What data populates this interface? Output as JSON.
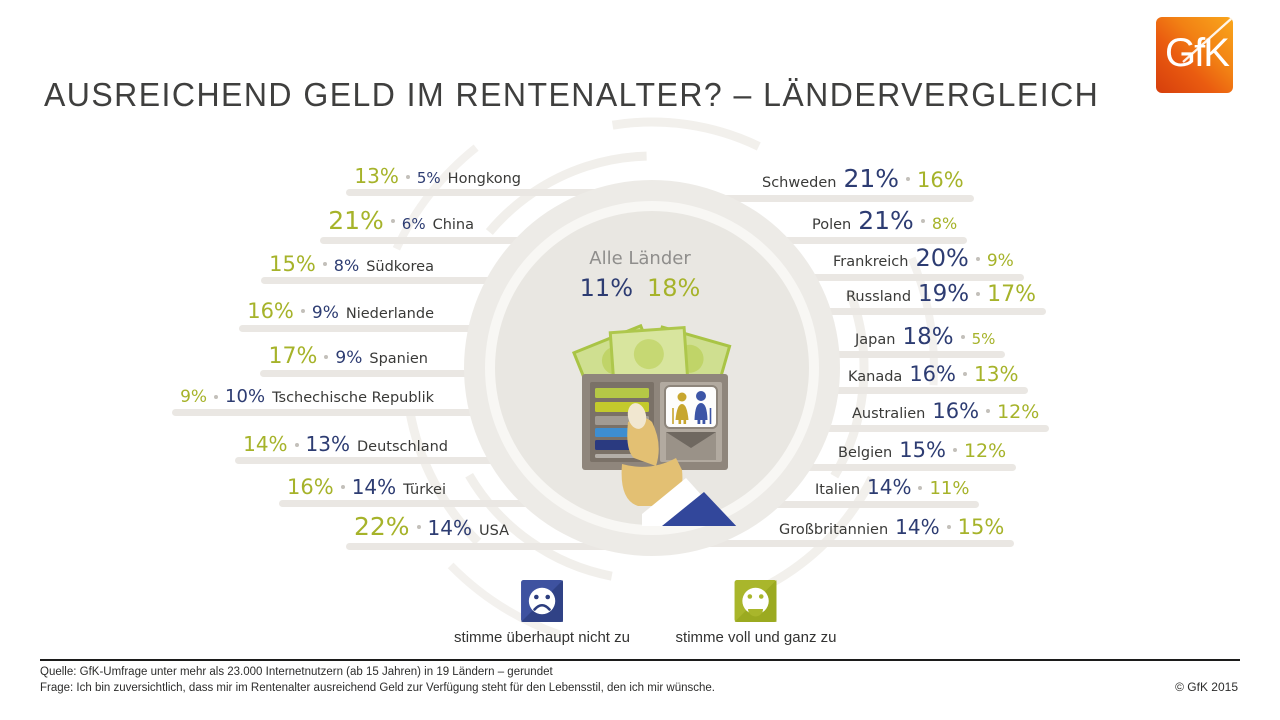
{
  "header": {
    "title": "AUSREICHEND GELD IM RENTENALTER? – LÄNDERVERGLEICH",
    "logo_text": "GfK"
  },
  "center": {
    "label": "Alle Länder",
    "disagree_label": "11%",
    "agree_label": "18%"
  },
  "left_countries": [
    {
      "name": "Hongkong",
      "agree": 13,
      "disagree": 5,
      "agree_label": "13%",
      "disagree_label": "5%"
    },
    {
      "name": "China",
      "agree": 21,
      "disagree": 6,
      "agree_label": "21%",
      "disagree_label": "6%"
    },
    {
      "name": "Südkorea",
      "agree": 15,
      "disagree": 8,
      "agree_label": "15%",
      "disagree_label": "8%"
    },
    {
      "name": "Niederlande",
      "agree": 16,
      "disagree": 9,
      "agree_label": "16%",
      "disagree_label": "9%"
    },
    {
      "name": "Spanien",
      "agree": 17,
      "disagree": 9,
      "agree_label": "17%",
      "disagree_label": "9%"
    },
    {
      "name": "Tschechische Republik",
      "agree": 9,
      "disagree": 10,
      "agree_label": "9%",
      "disagree_label": "10%"
    },
    {
      "name": "Deutschland",
      "agree": 14,
      "disagree": 13,
      "agree_label": "14%",
      "disagree_label": "13%"
    },
    {
      "name": "Türkei",
      "agree": 16,
      "disagree": 14,
      "agree_label": "16%",
      "disagree_label": "14%"
    },
    {
      "name": "USA",
      "agree": 22,
      "disagree": 14,
      "agree_label": "22%",
      "disagree_label": "14%"
    }
  ],
  "right_countries": [
    {
      "name": "Schweden",
      "disagree": 21,
      "agree": 16,
      "disagree_label": "21%",
      "agree_label": "16%"
    },
    {
      "name": "Polen",
      "disagree": 21,
      "agree": 8,
      "disagree_label": "21%",
      "agree_label": "8%"
    },
    {
      "name": "Frankreich",
      "disagree": 20,
      "agree": 9,
      "disagree_label": "20%",
      "agree_label": "9%"
    },
    {
      "name": "Russland",
      "disagree": 19,
      "agree": 17,
      "disagree_label": "19%",
      "agree_label": "17%"
    },
    {
      "name": "Japan",
      "disagree": 18,
      "agree": 5,
      "disagree_label": "18%",
      "agree_label": "5%"
    },
    {
      "name": "Kanada",
      "disagree": 16,
      "agree": 13,
      "disagree_label": "16%",
      "agree_label": "13%"
    },
    {
      "name": "Australien",
      "disagree": 16,
      "agree": 12,
      "disagree_label": "16%",
      "agree_label": "12%"
    },
    {
      "name": "Belgien",
      "disagree": 15,
      "agree": 12,
      "disagree_label": "15%",
      "agree_label": "12%"
    },
    {
      "name": "Italien",
      "disagree": 14,
      "agree": 11,
      "disagree_label": "14%",
      "agree_label": "11%"
    },
    {
      "name": "Großbritannien",
      "disagree": 14,
      "agree": 15,
      "disagree_label": "14%",
      "agree_label": "15%"
    }
  ],
  "legend": {
    "disagree_label": "stimme überhaupt nicht zu",
    "agree_label": "stimme voll und ganz zu"
  },
  "footer": {
    "source": "Quelle: GfK-Umfrage unter mehr als 23.000 Internetnutzern (ab 15 Jahren) in 19 Ländern – gerundet",
    "question": "Frage: Ich bin zuversichtlich, dass mir im Rentenalter ausreichend Geld zur Verfügung steht für den Lebensstil, den ich mir wünsche.",
    "copyright": "© GfK 2015"
  },
  "colors": {
    "agree_green": "#a6b32a",
    "disagree_blue": "#2d3c72",
    "country_text": "#3a3a38",
    "connector_bar": "#eae7e3",
    "circle_outer": "#edebe7",
    "circle_inner": "#e9e7e2",
    "logo_orange_light": "#f9a71c",
    "logo_orange_dark": "#d63e0c"
  },
  "chart_data": {
    "type": "table",
    "title": "Ausreichend Geld im Rentenalter? – Ländervergleich",
    "unit": "%",
    "categories": [
      "Hongkong",
      "China",
      "Südkorea",
      "Niederlande",
      "Spanien",
      "Tschechische Republik",
      "Deutschland",
      "Türkei",
      "USA",
      "Schweden",
      "Polen",
      "Frankreich",
      "Russland",
      "Japan",
      "Kanada",
      "Australien",
      "Belgien",
      "Italien",
      "Großbritannien"
    ],
    "series": [
      {
        "name": "stimme voll und ganz zu",
        "values": [
          13,
          21,
          15,
          16,
          17,
          9,
          14,
          16,
          22,
          16,
          8,
          9,
          17,
          5,
          13,
          12,
          12,
          11,
          15
        ]
      },
      {
        "name": "stimme überhaupt nicht zu",
        "values": [
          5,
          6,
          8,
          9,
          9,
          10,
          13,
          14,
          14,
          21,
          21,
          20,
          19,
          18,
          16,
          16,
          15,
          14,
          14
        ]
      }
    ],
    "average": {
      "label": "Alle Länder",
      "stimme_voll_und_ganz_zu": 18,
      "stimme_ueberhaupt_nicht_zu": 11
    },
    "legend_position": "bottom",
    "notes": "Zahlenformatierung: Schriftgröße proportional zum Prozentwert; grün = Zustimmung, dunkelblau = Ablehnung"
  }
}
